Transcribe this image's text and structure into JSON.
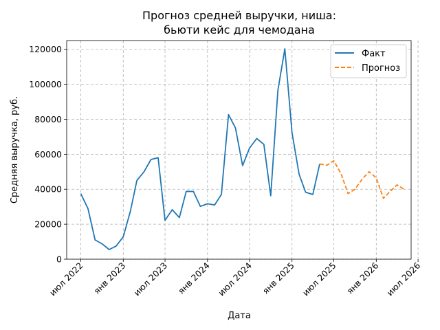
{
  "chart_data": {
    "type": "line",
    "title_line1": "Прогноз средней выручки, ниша:",
    "title_line2": "бьюти кейс для чемодана",
    "xlabel": "Дата",
    "ylabel": "Средняя выручка, руб.",
    "xlim": [
      "2022-05-01",
      "2026-06-01"
    ],
    "ylim": [
      0,
      125000
    ],
    "grid": true,
    "legend_position": "top-right",
    "x_ticks": [
      {
        "date": "2022-07-01",
        "label": "июл 2022"
      },
      {
        "date": "2023-01-01",
        "label": "янв 2023"
      },
      {
        "date": "2023-07-01",
        "label": "июл 2023"
      },
      {
        "date": "2024-01-01",
        "label": "янв 2024"
      },
      {
        "date": "2024-07-01",
        "label": "июл 2024"
      },
      {
        "date": "2025-01-01",
        "label": "янв 2025"
      },
      {
        "date": "2025-07-01",
        "label": "июл 2025"
      },
      {
        "date": "2026-01-01",
        "label": "янв 2026"
      },
      {
        "date": "2026-07-01",
        "label": "июл 2026"
      }
    ],
    "y_ticks": [
      {
        "value": 0,
        "label": "0"
      },
      {
        "value": 20000,
        "label": "20000"
      },
      {
        "value": 40000,
        "label": "40000"
      },
      {
        "value": 60000,
        "label": "60000"
      },
      {
        "value": 80000,
        "label": "80000"
      },
      {
        "value": 100000,
        "label": "100000"
      },
      {
        "value": 120000,
        "label": "120000"
      }
    ],
    "series": [
      {
        "name": "Факт",
        "color": "#1f77b4",
        "style": "solid",
        "points": [
          {
            "x": "2022-07-01",
            "y": 37500
          },
          {
            "x": "2022-08-01",
            "y": 29000
          },
          {
            "x": "2022-09-01",
            "y": 11000
          },
          {
            "x": "2022-10-01",
            "y": 8800
          },
          {
            "x": "2022-11-01",
            "y": 5500
          },
          {
            "x": "2022-12-01",
            "y": 7500
          },
          {
            "x": "2023-01-01",
            "y": 12800
          },
          {
            "x": "2023-02-01",
            "y": 27500
          },
          {
            "x": "2023-03-01",
            "y": 45000
          },
          {
            "x": "2023-04-01",
            "y": 50000
          },
          {
            "x": "2023-05-01",
            "y": 57000
          },
          {
            "x": "2023-06-01",
            "y": 58000
          },
          {
            "x": "2023-07-01",
            "y": 22200
          },
          {
            "x": "2023-08-01",
            "y": 28300
          },
          {
            "x": "2023-09-01",
            "y": 23800
          },
          {
            "x": "2023-10-01",
            "y": 38800
          },
          {
            "x": "2023-11-01",
            "y": 38700
          },
          {
            "x": "2023-12-01",
            "y": 30200
          },
          {
            "x": "2024-01-01",
            "y": 31700
          },
          {
            "x": "2024-02-01",
            "y": 31000
          },
          {
            "x": "2024-03-01",
            "y": 37000
          },
          {
            "x": "2024-04-01",
            "y": 82700
          },
          {
            "x": "2024-05-01",
            "y": 75000
          },
          {
            "x": "2024-06-01",
            "y": 53500
          },
          {
            "x": "2024-07-01",
            "y": 63500
          },
          {
            "x": "2024-08-01",
            "y": 69000
          },
          {
            "x": "2024-09-01",
            "y": 65700
          },
          {
            "x": "2024-10-01",
            "y": 36300
          },
          {
            "x": "2024-11-01",
            "y": 96500
          },
          {
            "x": "2024-12-01",
            "y": 120300
          },
          {
            "x": "2025-01-01",
            "y": 72500
          },
          {
            "x": "2025-02-01",
            "y": 48500
          },
          {
            "x": "2025-03-01",
            "y": 38300
          },
          {
            "x": "2025-04-01",
            "y": 37000
          },
          {
            "x": "2025-05-01",
            "y": 54500
          }
        ]
      },
      {
        "name": "Прогноз",
        "color": "#ff7f0e",
        "style": "dashed",
        "points": [
          {
            "x": "2025-05-01",
            "y": 54500
          },
          {
            "x": "2025-06-01",
            "y": 53700
          },
          {
            "x": "2025-07-01",
            "y": 56300
          },
          {
            "x": "2025-08-01",
            "y": 49000
          },
          {
            "x": "2025-09-01",
            "y": 37500
          },
          {
            "x": "2025-10-01",
            "y": 40000
          },
          {
            "x": "2025-11-01",
            "y": 45800
          },
          {
            "x": "2025-12-01",
            "y": 50000
          },
          {
            "x": "2026-01-01",
            "y": 46500
          },
          {
            "x": "2026-02-01",
            "y": 34800
          },
          {
            "x": "2026-03-01",
            "y": 38600
          },
          {
            "x": "2026-04-01",
            "y": 42500
          },
          {
            "x": "2026-05-01",
            "y": 40000
          }
        ]
      }
    ]
  }
}
